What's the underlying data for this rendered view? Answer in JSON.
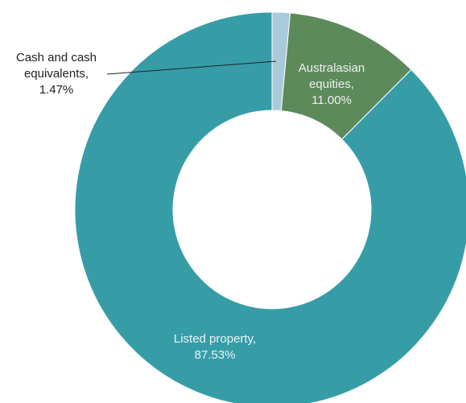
{
  "chart_data": {
    "type": "pie",
    "variant": "donut",
    "title": "",
    "slices": [
      {
        "name": "Cash and cash equivalents",
        "value": 1.47,
        "label_lines": [
          "Cash and cash",
          "equivalents,",
          "1.47%"
        ],
        "color": "#a9cbd9",
        "label_color": "#222222",
        "label_placement": "outside-left-with-leader"
      },
      {
        "name": "Australasian equities",
        "value": 11.0,
        "label_lines": [
          "Australasian",
          "equities,",
          "11.00%"
        ],
        "color": "#5c8a5a",
        "label_color": "#f0f0f0",
        "label_placement": "inside"
      },
      {
        "name": "Listed property",
        "value": 87.53,
        "label_lines": [
          "Listed property,",
          "87.53%"
        ],
        "color": "#369da6",
        "label_color": "#e8f4f5",
        "label_placement": "inside"
      }
    ],
    "legend": "none"
  }
}
